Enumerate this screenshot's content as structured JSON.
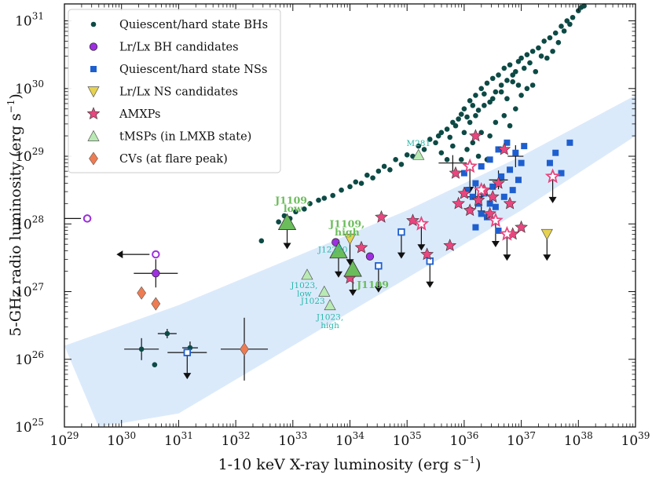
{
  "chart_data": {
    "type": "scatter",
    "xlabel_main": "1-10 keV X-ray luminosity (erg s",
    "xlabel_sup": "−1",
    "xlabel_end": ")",
    "ylabel_main": "5-GHz radio luminosity (erg s",
    "ylabel_sup": "−1",
    "ylabel_end": ")",
    "xlim": [
      29,
      39
    ],
    "ylim": [
      25,
      31.25
    ],
    "log_axes": true,
    "x_ticks": [
      {
        "exp": 29,
        "base": "10",
        "sup": "29"
      },
      {
        "exp": 30,
        "base": "10",
        "sup": "30"
      },
      {
        "exp": 31,
        "base": "10",
        "sup": "31"
      },
      {
        "exp": 32,
        "base": "10",
        "sup": "32"
      },
      {
        "exp": 33,
        "base": "10",
        "sup": "33"
      },
      {
        "exp": 34,
        "base": "10",
        "sup": "34"
      },
      {
        "exp": 35,
        "base": "10",
        "sup": "35"
      },
      {
        "exp": 36,
        "base": "10",
        "sup": "36"
      },
      {
        "exp": 37,
        "base": "10",
        "sup": "37"
      },
      {
        "exp": 38,
        "base": "10",
        "sup": "38"
      },
      {
        "exp": 39,
        "base": "10",
        "sup": "39"
      }
    ],
    "y_ticks": [
      {
        "exp": 25,
        "base": "10",
        "sup": "25"
      },
      {
        "exp": 26,
        "base": "10",
        "sup": "26"
      },
      {
        "exp": 27,
        "base": "10",
        "sup": "27"
      },
      {
        "exp": 28,
        "base": "10",
        "sup": "28"
      },
      {
        "exp": 29,
        "base": "10",
        "sup": "29"
      },
      {
        "exp": 30,
        "base": "10",
        "sup": "30"
      },
      {
        "exp": 31,
        "base": "10",
        "sup": "31"
      }
    ],
    "legend_position": "top-left",
    "legend": [
      {
        "label": "Quiescent/hard state BHs",
        "marker": "dot",
        "color": "#0d4a45"
      },
      {
        "label": "Lr/Lx BH candidates",
        "marker": "circle",
        "color": "#9d30e0"
      },
      {
        "label": "Quiescent/hard state NSs",
        "marker": "square",
        "color": "#1e5fcf"
      },
      {
        "label": "Lr/Lx NS candidates",
        "marker": "triangle-down",
        "color": "#e6d250"
      },
      {
        "label": "AMXPs",
        "marker": "star",
        "color": "#e8467e"
      },
      {
        "label": "tMSPs (in LMXB state)",
        "marker": "triangle-up",
        "color": "#b9eab4"
      },
      {
        "label": "CVs (at flare peak)",
        "marker": "diamond",
        "color": "#ee7c52"
      }
    ],
    "band": {
      "color": "#dbeafb",
      "upper_edge": [
        [
          29,
          26.2
        ],
        [
          31,
          26.8
        ],
        [
          33,
          27.5
        ],
        [
          35,
          28.2
        ],
        [
          37,
          29.0
        ],
        [
          39,
          29.9
        ]
      ],
      "lower_edge": [
        [
          29.6,
          25.0
        ],
        [
          31,
          25.2
        ],
        [
          33,
          26.2
        ],
        [
          35,
          27.2
        ],
        [
          37,
          28.2
        ],
        [
          39,
          29.3
        ]
      ]
    },
    "series": [
      {
        "name": "Quiescent/hard state BHs",
        "marker": "dot",
        "color": "#0d4a45",
        "points": [
          [
            30.35,
            26.15
          ],
          [
            30.58,
            25.92
          ],
          [
            30.8,
            26.38
          ],
          [
            31.2,
            26.17
          ],
          [
            32.45,
            27.75
          ],
          [
            32.75,
            28.03
          ],
          [
            32.85,
            28.12
          ],
          [
            32.95,
            28.08
          ],
          [
            33.05,
            28.18
          ],
          [
            33.2,
            28.22
          ],
          [
            33.3,
            28.3
          ],
          [
            33.45,
            28.35
          ],
          [
            33.55,
            28.38
          ],
          [
            33.7,
            28.42
          ],
          [
            33.85,
            28.5
          ],
          [
            34.0,
            28.55
          ],
          [
            34.1,
            28.62
          ],
          [
            34.2,
            28.6
          ],
          [
            34.3,
            28.72
          ],
          [
            34.4,
            28.68
          ],
          [
            34.5,
            28.78
          ],
          [
            34.6,
            28.85
          ],
          [
            34.7,
            28.8
          ],
          [
            34.8,
            28.95
          ],
          [
            34.9,
            28.88
          ],
          [
            35.0,
            29.02
          ],
          [
            35.1,
            29.0
          ],
          [
            35.2,
            29.15
          ],
          [
            35.3,
            29.1
          ],
          [
            35.4,
            29.25
          ],
          [
            35.5,
            29.2
          ],
          [
            35.55,
            29.3
          ],
          [
            35.6,
            29.35
          ],
          [
            35.7,
            29.4
          ],
          [
            35.75,
            29.28
          ],
          [
            35.8,
            29.5
          ],
          [
            35.85,
            29.45
          ],
          [
            35.9,
            29.55
          ],
          [
            35.95,
            29.62
          ],
          [
            36.0,
            29.7
          ],
          [
            36.05,
            29.58
          ],
          [
            36.1,
            29.82
          ],
          [
            36.15,
            29.75
          ],
          [
            36.2,
            29.9
          ],
          [
            36.25,
            29.68
          ],
          [
            36.3,
            30.0
          ],
          [
            36.35,
            29.92
          ],
          [
            36.4,
            30.08
          ],
          [
            36.45,
            29.8
          ],
          [
            36.5,
            30.15
          ],
          [
            36.55,
            29.95
          ],
          [
            36.6,
            30.2
          ],
          [
            36.65,
            30.05
          ],
          [
            36.7,
            30.3
          ],
          [
            36.75,
            30.12
          ],
          [
            36.8,
            30.35
          ],
          [
            36.85,
            30.1
          ],
          [
            36.9,
            30.25
          ],
          [
            36.95,
            30.4
          ],
          [
            37.0,
            30.45
          ],
          [
            37.05,
            30.3
          ],
          [
            37.1,
            30.5
          ],
          [
            37.15,
            30.38
          ],
          [
            37.2,
            30.55
          ],
          [
            37.3,
            30.6
          ],
          [
            37.35,
            30.48
          ],
          [
            37.4,
            30.7
          ],
          [
            37.5,
            30.75
          ],
          [
            37.6,
            30.82
          ],
          [
            37.65,
            30.68
          ],
          [
            37.7,
            30.92
          ],
          [
            37.75,
            30.85
          ],
          [
            37.8,
            31.0
          ],
          [
            37.85,
            30.95
          ],
          [
            37.9,
            31.05
          ],
          [
            38.0,
            31.15
          ],
          [
            38.05,
            31.2
          ],
          [
            38.1,
            31.22
          ],
          [
            35.95,
            28.95
          ],
          [
            36.05,
            29.1
          ],
          [
            36.15,
            29.2
          ],
          [
            36.3,
            29.35
          ],
          [
            36.45,
            29.3
          ],
          [
            36.55,
            29.5
          ],
          [
            36.7,
            29.6
          ],
          [
            36.8,
            29.45
          ],
          [
            36.9,
            29.7
          ],
          [
            37.0,
            29.9
          ],
          [
            37.1,
            30.0
          ],
          [
            37.2,
            30.05
          ],
          [
            36.25,
            29.0
          ],
          [
            36.4,
            28.95
          ],
          [
            36.6,
            29.1
          ],
          [
            35.6,
            29.05
          ],
          [
            35.7,
            28.95
          ],
          [
            35.8,
            29.15
          ],
          [
            36.0,
            29.35
          ],
          [
            36.1,
            29.5
          ],
          [
            36.2,
            29.6
          ],
          [
            36.35,
            29.75
          ],
          [
            36.5,
            29.85
          ],
          [
            36.65,
            29.95
          ],
          [
            36.85,
            30.2
          ],
          [
            37.25,
            30.25
          ],
          [
            37.45,
            30.45
          ],
          [
            37.55,
            30.55
          ],
          [
            36.75,
            29.85
          ],
          [
            36.95,
            30.05
          ]
        ]
      },
      {
        "name": "Lr/Lx BH candidates",
        "marker": "circle",
        "color": "#9d30e0",
        "points": [
          [
            29.4,
            28.08
          ],
          [
            30.6,
            27.27
          ],
          [
            33.75,
            27.73
          ],
          [
            34.35,
            27.52
          ]
        ]
      },
      {
        "name": "Lr/Lx BH candidates (limits)",
        "marker": "circle-open",
        "color": "#9d30e0",
        "points": [
          [
            29.4,
            28.08
          ],
          [
            30.6,
            27.55
          ]
        ]
      },
      {
        "name": "Quiescent/hard state NSs",
        "marker": "square",
        "color": "#1e5fcf",
        "points": [
          [
            36.0,
            28.75
          ],
          [
            36.05,
            28.5
          ],
          [
            36.1,
            28.2
          ],
          [
            36.15,
            28.4
          ],
          [
            36.2,
            28.6
          ],
          [
            36.25,
            28.3
          ],
          [
            36.3,
            28.85
          ],
          [
            36.35,
            28.45
          ],
          [
            36.4,
            28.1
          ],
          [
            36.45,
            28.95
          ],
          [
            36.5,
            28.55
          ],
          [
            36.55,
            28.25
          ],
          [
            36.6,
            29.1
          ],
          [
            36.65,
            28.7
          ],
          [
            36.7,
            28.4
          ],
          [
            36.75,
            29.2
          ],
          [
            36.8,
            28.8
          ],
          [
            36.85,
            28.5
          ],
          [
            36.9,
            29.05
          ],
          [
            36.95,
            28.65
          ],
          [
            37.0,
            28.9
          ],
          [
            37.05,
            29.15
          ],
          [
            36.2,
            27.95
          ],
          [
            36.3,
            28.15
          ],
          [
            36.45,
            28.3
          ],
          [
            37.6,
            29.05
          ],
          [
            37.7,
            28.75
          ],
          [
            37.85,
            29.2
          ],
          [
            37.5,
            28.9
          ],
          [
            36.6,
            27.9
          ]
        ]
      },
      {
        "name": "Quiescent/hard state NSs (limits)",
        "marker": "square-open",
        "color": "#1e5fcf",
        "points": [
          [
            31.15,
            26.1
          ],
          [
            34.5,
            27.38
          ],
          [
            34.9,
            27.88
          ],
          [
            35.4,
            27.45
          ]
        ]
      },
      {
        "name": "Lr/Lx NS candidates",
        "marker": "triangle-down",
        "color": "#e6d250",
        "points": [
          [
            34.0,
            27.78
          ],
          [
            37.45,
            27.85
          ]
        ]
      },
      {
        "name": "AMXPs",
        "marker": "star",
        "color": "#e8467e",
        "points": [
          [
            34.0,
            27.2
          ],
          [
            34.2,
            27.65
          ],
          [
            34.55,
            28.1
          ],
          [
            35.1,
            28.05
          ],
          [
            35.35,
            27.55
          ],
          [
            35.75,
            27.68
          ],
          [
            35.85,
            28.75
          ],
          [
            35.9,
            28.3
          ],
          [
            36.0,
            28.45
          ],
          [
            36.1,
            28.2
          ],
          [
            36.2,
            29.3
          ],
          [
            36.25,
            28.35
          ],
          [
            36.35,
            28.5
          ],
          [
            36.45,
            28.15
          ],
          [
            36.5,
            28.4
          ],
          [
            36.6,
            28.6
          ],
          [
            36.7,
            29.1
          ],
          [
            36.8,
            28.3
          ],
          [
            36.85,
            27.85
          ],
          [
            37.0,
            27.95
          ]
        ]
      },
      {
        "name": "AMXPs (limits)",
        "marker": "star-open",
        "color": "#e8467e",
        "points": [
          [
            35.25,
            28.0
          ],
          [
            36.1,
            28.85
          ],
          [
            36.3,
            28.5
          ],
          [
            36.55,
            28.05
          ],
          [
            36.75,
            27.85
          ],
          [
            37.55,
            28.7
          ]
        ]
      },
      {
        "name": "tMSPs (in LMXB state)",
        "marker": "triangle-up",
        "color": "#b9eab4",
        "points": [
          [
            33.25,
            27.25
          ],
          [
            33.55,
            27.0
          ],
          [
            33.65,
            26.8
          ],
          [
            35.2,
            29.02
          ]
        ]
      },
      {
        "name": "J1109",
        "marker": "triangle-up-big",
        "color": "#6bbd5b",
        "points": [
          [
            32.9,
            28.02
          ],
          [
            33.8,
            27.6
          ],
          [
            34.05,
            27.33
          ]
        ]
      },
      {
        "name": "CVs (at flare peak)",
        "marker": "diamond",
        "color": "#ee7c52",
        "points": [
          [
            30.35,
            26.98
          ],
          [
            30.6,
            26.82
          ],
          [
            32.15,
            26.15
          ]
        ]
      }
    ],
    "annotations": [
      {
        "text": "J1109,",
        "x": 33.0,
        "y": 28.3,
        "color": "#6bbd5b",
        "weight": "bold"
      },
      {
        "text": "low",
        "x": 33.0,
        "y": 28.18,
        "color": "#6bbd5b",
        "weight": "bold"
      },
      {
        "text": "J1109,",
        "x": 33.95,
        "y": 27.95,
        "color": "#6bbd5b",
        "weight": "bold"
      },
      {
        "text": "high",
        "x": 33.95,
        "y": 27.83,
        "color": "#6bbd5b",
        "weight": "bold"
      },
      {
        "text": "J1109",
        "x": 34.4,
        "y": 27.05,
        "color": "#6bbd5b",
        "weight": "bold"
      },
      {
        "text": "J12270",
        "x": 33.7,
        "y": 27.58,
        "color": "#27b7a9",
        "weight": "normal"
      },
      {
        "text": "M281",
        "x": 35.2,
        "y": 29.15,
        "color": "#27b7a9",
        "weight": "normal"
      },
      {
        "text": "J1023,",
        "x": 33.2,
        "y": 27.05,
        "color": "#27b7a9",
        "weight": "normal"
      },
      {
        "text": "low",
        "x": 33.2,
        "y": 26.93,
        "color": "#27b7a9",
        "weight": "normal"
      },
      {
        "text": "J1023",
        "x": 33.35,
        "y": 26.82,
        "color": "#27b7a9",
        "weight": "normal"
      },
      {
        "text": "J1023,",
        "x": 33.65,
        "y": 26.58,
        "color": "#27b7a9",
        "weight": "normal"
      },
      {
        "text": "high",
        "x": 33.65,
        "y": 26.46,
        "color": "#27b7a9",
        "weight": "normal"
      }
    ]
  }
}
